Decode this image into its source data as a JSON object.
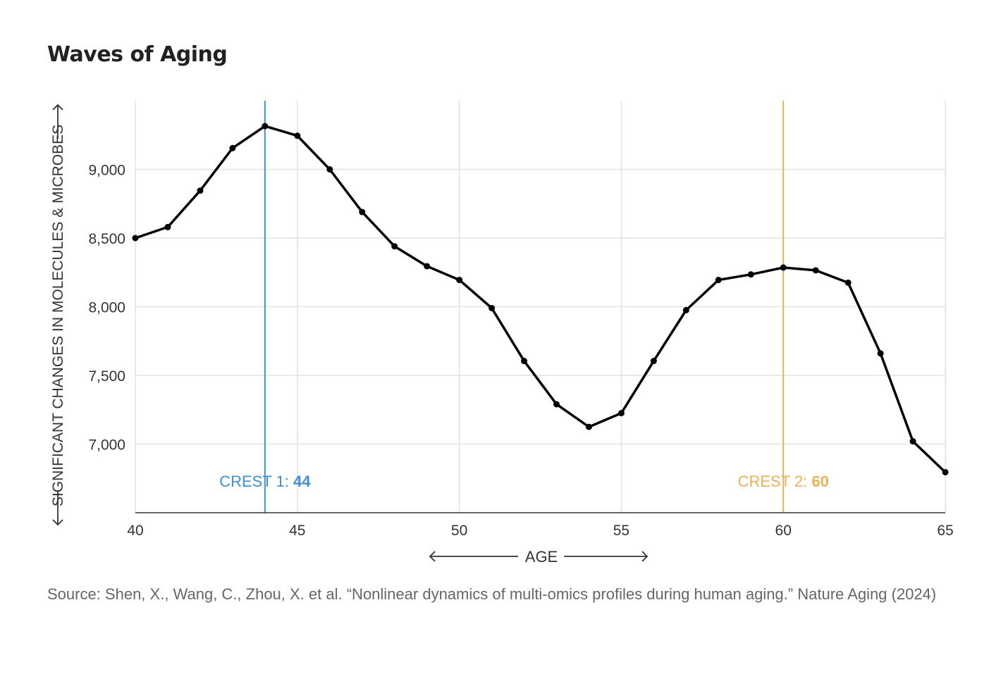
{
  "title": "Waves of Aging",
  "source": "Source: Shen, X., Wang, C., Zhou, X. et al. “Nonlinear dynamics of multi-omics profiles during human aging.” Nature Aging (2024)",
  "colors": {
    "line": "#000000",
    "crest1": "#3f8fd2",
    "crest2": "#e8b15a",
    "grid": "#e2e2e2",
    "axis": "#333333",
    "text": "#333333"
  },
  "chart_data": {
    "type": "line",
    "xlabel": "AGE",
    "ylabel": "SIGNIFICANT CHANGES IN MOLECULES & MICROBES",
    "xlim": [
      40,
      65
    ],
    "ylim": [
      6500,
      9500
    ],
    "x_ticks": [
      40,
      45,
      50,
      55,
      60,
      65
    ],
    "y_ticks": [
      7000,
      7500,
      8000,
      8500,
      9000
    ],
    "grid": true,
    "series": [
      {
        "x": [
          40,
          41,
          42,
          43,
          44,
          45,
          46,
          47,
          48,
          49,
          50,
          51,
          52,
          53,
          54,
          55,
          56,
          57,
          58,
          59,
          60,
          61,
          62,
          63,
          64,
          65
        ],
        "y": [
          8500,
          8580,
          8845,
          9155,
          9315,
          9245,
          9000,
          8690,
          8440,
          8295,
          8195,
          7990,
          7605,
          7290,
          7125,
          7225,
          7605,
          7975,
          8195,
          8235,
          8285,
          8265,
          8175,
          7660,
          7020,
          6795
        ]
      }
    ],
    "annotations": [
      {
        "x": 44,
        "label": "CREST 1: ",
        "value": "44",
        "color": "#3f8fd2"
      },
      {
        "x": 60,
        "label": "CREST 2: ",
        "value": "60",
        "color": "#e8b15a"
      }
    ]
  }
}
